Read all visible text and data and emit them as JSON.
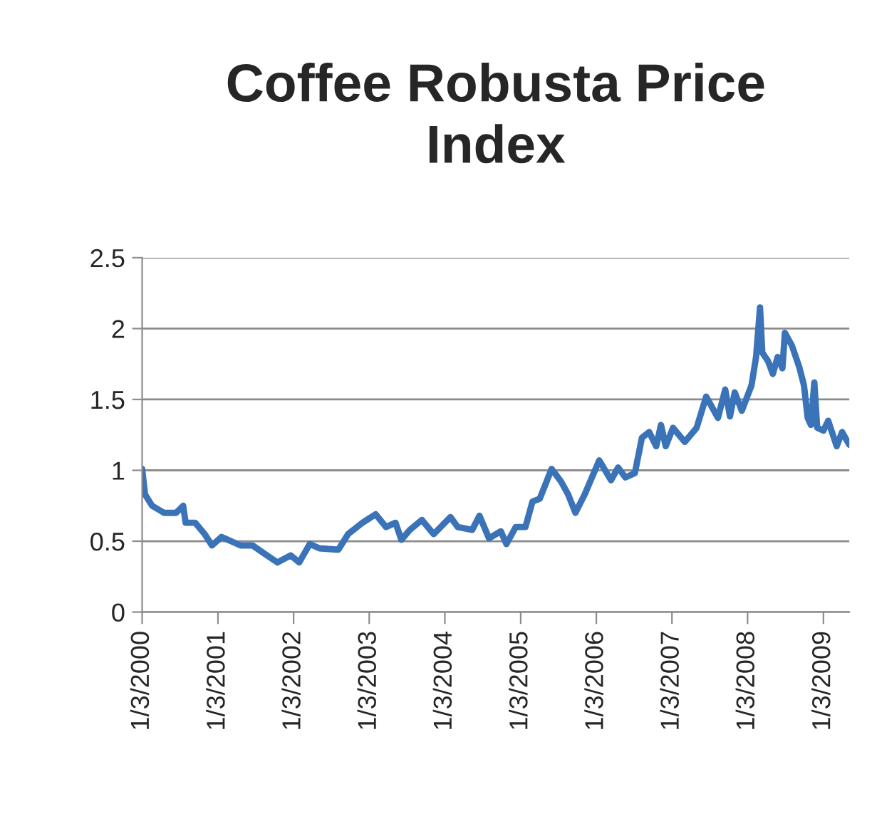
{
  "chart_data": {
    "type": "line",
    "title": "Coffee Robusta Price Index",
    "x": [
      "2000-01-03",
      "2000-01-17",
      "2000-02-20",
      "2000-04-18",
      "2000-06-15",
      "2000-07-19",
      "2000-07-31",
      "2000-09-15",
      "2000-10-31",
      "2000-12-05",
      "2001-01-20",
      "2001-03-07",
      "2001-04-22",
      "2001-06-19",
      "2001-08-27",
      "2001-10-17",
      "2001-12-20",
      "2002-01-30",
      "2002-03-22",
      "2002-05-07",
      "2002-08-07",
      "2002-09-23",
      "2002-12-01",
      "2003-02-03",
      "2003-03-25",
      "2003-05-10",
      "2003-06-07",
      "2003-07-18",
      "2003-09-14",
      "2003-11-10",
      "2004-01-30",
      "2004-03-05",
      "2004-05-14",
      "2004-06-18",
      "2004-08-03",
      "2004-09-29",
      "2004-10-26",
      "2004-12-10",
      "2005-01-26",
      "2005-03-01",
      "2005-04-05",
      "2005-06-01",
      "2005-07-17",
      "2005-08-20",
      "2005-09-24",
      "2005-11-08",
      "2006-01-17",
      "2006-03-15",
      "2006-04-18",
      "2006-05-23",
      "2006-07-08",
      "2006-08-11",
      "2006-09-15",
      "2006-10-19",
      "2006-11-11",
      "2006-12-04",
      "2007-01-08",
      "2007-03-06",
      "2007-05-02",
      "2007-06-17",
      "2007-08-13",
      "2007-09-17",
      "2007-10-10",
      "2007-11-02",
      "2007-12-06",
      "2008-01-22",
      "2008-02-13",
      "2008-03-03",
      "2008-03-14",
      "2008-04-11",
      "2008-05-04",
      "2008-05-27",
      "2008-06-19",
      "2008-07-01",
      "2008-08-04",
      "2008-09-08",
      "2008-10-01",
      "2008-10-19",
      "2008-11-04",
      "2008-11-20",
      "2008-12-04",
      "2009-01-03",
      "2009-01-26",
      "2009-03-08",
      "2009-04-03",
      "2009-05-08"
    ],
    "series": [
      {
        "color": "#3b73b9",
        "values": [
          1.01,
          0.83,
          0.75,
          0.7,
          0.7,
          0.75,
          0.63,
          0.63,
          0.55,
          0.47,
          0.53,
          0.5,
          0.47,
          0.47,
          0.4,
          0.35,
          0.4,
          0.35,
          0.48,
          0.45,
          0.44,
          0.55,
          0.63,
          0.69,
          0.6,
          0.63,
          0.51,
          0.58,
          0.65,
          0.55,
          0.67,
          0.6,
          0.58,
          0.68,
          0.52,
          0.57,
          0.48,
          0.6,
          0.6,
          0.78,
          0.8,
          1.01,
          0.92,
          0.83,
          0.7,
          0.83,
          1.07,
          0.93,
          1.02,
          0.95,
          0.98,
          1.23,
          1.27,
          1.17,
          1.32,
          1.17,
          1.3,
          1.2,
          1.3,
          1.52,
          1.37,
          1.57,
          1.38,
          1.55,
          1.42,
          1.6,
          1.8,
          2.15,
          1.83,
          1.77,
          1.68,
          1.8,
          1.72,
          1.97,
          1.88,
          1.73,
          1.6,
          1.37,
          1.32,
          1.62,
          1.3,
          1.28,
          1.35,
          1.17,
          1.27,
          1.18
        ]
      }
    ],
    "xlim": [
      "2000-01-03",
      "2009-05-08"
    ],
    "xticks": [
      {
        "value": "2000-01-03",
        "label": "1/3/2000"
      },
      {
        "value": "2001-01-03",
        "label": "1/3/2001"
      },
      {
        "value": "2002-01-03",
        "label": "1/3/2002"
      },
      {
        "value": "2003-01-03",
        "label": "1/3/2003"
      },
      {
        "value": "2004-01-03",
        "label": "1/3/2004"
      },
      {
        "value": "2005-01-03",
        "label": "1/3/2005"
      },
      {
        "value": "2006-01-03",
        "label": "1/3/2006"
      },
      {
        "value": "2007-01-03",
        "label": "1/3/2007"
      },
      {
        "value": "2008-01-03",
        "label": "1/3/2008"
      },
      {
        "value": "2009-01-03",
        "label": "1/3/2009"
      }
    ],
    "ylim": [
      0,
      2.5
    ],
    "yticks": [
      0,
      {
        "value": 0.5,
        "label": "0.5"
      },
      1,
      {
        "value": 1.5,
        "label": "1.5"
      },
      2,
      {
        "value": 2.5,
        "label": "2.5"
      }
    ],
    "grid": "y",
    "marker": "none",
    "line_style": "solid",
    "legend": false
  }
}
